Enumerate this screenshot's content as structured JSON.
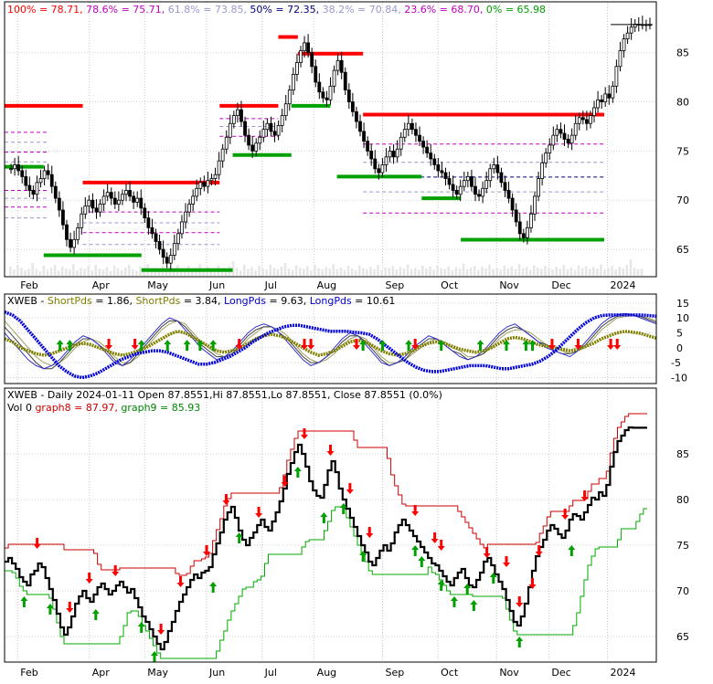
{
  "chart_data": [
    {
      "type": "candlestick",
      "panel": "price",
      "title": "XWEB - Daily 2024-01-11 Open 87.8551, Hi 87.8551, Lo 87.8551, Close 87.8551 (0.0%)",
      "fib_header": [
        {
          "text": "100% = 78.71,",
          "color": "#ff0000"
        },
        {
          "text": "78.6% = 75.71,",
          "color": "#c000c0"
        },
        {
          "text": "61.8% = 73.85,",
          "color": "#9999cc"
        },
        {
          "text": "50% = 72.35,",
          "color": "#000080"
        },
        {
          "text": "38.2% = 70.84,",
          "color": "#9999cc"
        },
        {
          "text": "23.6% = 68.70,",
          "color": "#c000c0"
        },
        {
          "text": "0% = 65.98",
          "color": "#00a000"
        }
      ],
      "ylim": [
        62.5,
        88.5
      ],
      "yticks": [
        65,
        70,
        75,
        80,
        85
      ],
      "months": [
        {
          "label": "Feb",
          "t": 0.02
        },
        {
          "label": "Apr",
          "t": 0.13
        },
        {
          "label": "May",
          "t": 0.215
        },
        {
          "label": "Jun",
          "t": 0.31
        },
        {
          "label": "Jul",
          "t": 0.395
        },
        {
          "label": "Aug",
          "t": 0.475
        },
        {
          "label": "Sep",
          "t": 0.58
        },
        {
          "label": "Oct",
          "t": 0.665
        },
        {
          "label": "Nov",
          "t": 0.755
        },
        {
          "label": "Dec",
          "t": 0.835
        },
        {
          "label": "2024",
          "t": 0.925
        }
      ],
      "close": [
        73.2,
        73.6,
        73.0,
        72.4,
        71.5,
        71.0,
        70.6,
        71.8,
        72.2,
        73.0,
        72.6,
        71.4,
        70.2,
        69.0,
        67.5,
        66.0,
        65.2,
        66.0,
        67.2,
        68.6,
        69.4,
        70.0,
        69.2,
        68.8,
        69.6,
        70.4,
        70.8,
        70.2,
        69.6,
        70.0,
        70.6,
        71.0,
        70.4,
        69.8,
        70.2,
        69.2,
        68.2,
        67.2,
        66.6,
        65.8,
        65.0,
        64.2,
        63.6,
        64.4,
        65.6,
        66.6,
        67.8,
        68.8,
        69.6,
        70.4,
        71.2,
        71.8,
        71.4,
        72.0,
        72.2,
        72.6,
        74.0,
        75.2,
        76.4,
        77.8,
        78.6,
        79.2,
        78.0,
        76.6,
        75.6,
        75.0,
        75.8,
        76.4,
        77.2,
        77.8,
        77.0,
        76.6,
        77.6,
        78.6,
        79.8,
        81.2,
        82.8,
        84.0,
        85.2,
        86.0,
        85.0,
        83.6,
        82.0,
        81.0,
        80.4,
        80.2,
        81.6,
        83.2,
        84.2,
        83.0,
        81.2,
        80.0,
        79.0,
        78.0,
        77.0,
        76.0,
        75.0,
        74.2,
        73.2,
        72.8,
        73.6,
        74.4,
        75.0,
        74.4,
        75.2,
        76.4,
        77.2,
        77.8,
        77.2,
        76.6,
        76.0,
        75.4,
        74.8,
        74.2,
        73.6,
        73.0,
        72.8,
        72.2,
        71.6,
        71.0,
        70.6,
        71.4,
        72.0,
        72.4,
        71.4,
        70.6,
        70.4,
        71.2,
        72.0,
        73.2,
        73.6,
        72.8,
        71.8,
        71.0,
        70.2,
        69.0,
        67.8,
        66.6,
        66.2,
        67.2,
        68.6,
        70.4,
        72.2,
        73.8,
        74.8,
        75.6,
        76.6,
        77.2,
        76.8,
        76.2,
        75.8,
        76.6,
        77.8,
        78.4,
        78.2,
        77.8,
        78.6,
        79.4,
        80.2,
        80.0,
        80.8,
        80.4,
        81.6,
        83.6,
        85.2,
        86.4,
        87.0,
        87.6,
        87.9,
        87.86,
        87.86,
        87.86,
        87.86
      ],
      "volume": [
        0.25,
        0.18,
        0.3,
        0.22,
        0.15,
        0.2,
        0.35,
        0.18,
        0.12,
        0.28,
        0.16,
        0.22,
        0.3,
        0.14,
        0.25,
        0.2,
        0.18,
        0.32,
        0.15,
        0.22,
        0.19,
        0.26,
        0.14,
        0.3,
        0.2,
        0.17,
        0.24,
        0.13,
        0.28,
        0.21,
        0.16,
        0.23,
        0.3,
        0.18,
        0.14,
        0.26,
        0.2,
        0.32,
        0.17,
        0.22,
        0.15,
        0.28,
        0.19,
        0.24,
        0.16,
        0.3,
        0.2,
        0.18,
        0.27,
        0.14,
        0.22,
        0.33,
        0.17,
        0.25,
        0.2,
        0.15,
        0.29,
        0.21,
        0.18,
        0.26,
        0.4,
        0.22,
        0.15,
        0.3,
        0.19,
        0.24,
        0.16,
        0.28,
        0.2,
        0.17,
        0.31,
        0.22,
        0.18,
        0.25,
        0.35,
        0.2,
        0.16,
        0.28,
        0.22,
        0.19,
        0.26,
        0.15,
        0.3,
        0.21,
        0.17,
        0.24,
        0.2,
        0.32,
        0.18,
        0.23,
        0.16,
        0.27,
        0.2,
        0.15,
        0.29,
        0.22,
        0.18,
        0.25,
        0.19,
        0.3,
        0.16,
        0.23,
        0.21,
        0.27,
        0.17,
        0.24,
        0.2,
        0.31,
        0.18,
        0.22,
        0.16,
        0.28,
        0.2,
        0.25,
        0.17,
        0.3,
        0.21,
        0.19,
        0.26,
        0.15,
        0.24,
        0.2,
        0.33,
        0.18,
        0.22,
        0.27,
        0.16,
        0.25,
        0.2,
        0.3,
        0.19,
        0.23,
        0.17,
        0.28,
        0.21,
        0.26,
        0.18,
        0.32,
        0.2,
        0.24,
        0.16,
        0.29,
        0.22,
        0.19,
        0.27,
        0.21,
        0.17,
        0.25,
        0.2,
        0.3,
        0.18,
        0.23,
        0.16,
        0.28,
        0.21,
        0.26,
        0.19,
        0.24,
        0.2,
        0.31,
        0.17,
        0.22,
        0.27,
        0.18,
        0.25,
        0.2,
        0.3,
        0.45,
        0.22,
        0.18,
        0.2
      ],
      "support_resistance": [
        {
          "color": "#ff0000",
          "y": 79.6,
          "t0": 0.0,
          "t1": 0.12
        },
        {
          "color": "#00a000",
          "y": 73.4,
          "t0": 0.0,
          "t1": 0.06
        },
        {
          "color": "#00a000",
          "y": 64.4,
          "t0": 0.06,
          "t1": 0.21
        },
        {
          "color": "#ff0000",
          "y": 71.8,
          "t0": 0.12,
          "t1": 0.33
        },
        {
          "color": "#00a000",
          "y": 62.9,
          "t0": 0.21,
          "t1": 0.35
        },
        {
          "color": "#ff0000",
          "y": 79.6,
          "t0": 0.33,
          "t1": 0.42
        },
        {
          "color": "#00a000",
          "y": 74.6,
          "t0": 0.35,
          "t1": 0.44
        },
        {
          "color": "#ff0000",
          "y": 86.6,
          "t0": 0.42,
          "t1": 0.45
        },
        {
          "color": "#ff0000",
          "y": 84.9,
          "t0": 0.45,
          "t1": 0.55
        },
        {
          "color": "#00a000",
          "y": 79.6,
          "t0": 0.44,
          "t1": 0.5
        },
        {
          "color": "#00a000",
          "y": 72.4,
          "t0": 0.51,
          "t1": 0.64
        },
        {
          "color": "#ff0000",
          "y": 78.7,
          "t0": 0.55,
          "t1": 0.92
        },
        {
          "color": "#00a000",
          "y": 70.2,
          "t0": 0.64,
          "t1": 0.7
        },
        {
          "color": "#00a000",
          "y": 65.98,
          "t0": 0.7,
          "t1": 0.92
        }
      ],
      "fib_lines": [
        {
          "y": 75.71,
          "color": "#c000c0",
          "t0": 0.55,
          "t1": 0.92
        },
        {
          "y": 73.85,
          "color": "#9999cc",
          "t0": 0.55,
          "t1": 0.92
        },
        {
          "y": 72.35,
          "color": "#000080",
          "t0": 0.55,
          "t1": 0.92
        },
        {
          "y": 70.84,
          "color": "#9999cc",
          "t0": 0.55,
          "t1": 0.92
        },
        {
          "y": 68.7,
          "color": "#c000c0",
          "t0": 0.55,
          "t1": 0.92
        }
      ]
    },
    {
      "type": "line",
      "panel": "oscillator",
      "legend": [
        {
          "text": "XWEB - ",
          "color": "#000000"
        },
        {
          "text": "ShortPds",
          "color": "#808000"
        },
        {
          "text": " = 1.86, ",
          "color": "#000000"
        },
        {
          "text": "ShortPds",
          "color": "#808000"
        },
        {
          "text": " = 3.84, ",
          "color": "#000000"
        },
        {
          "text": "LongPds",
          "color": "#0000cc"
        },
        {
          "text": " = 9.63, ",
          "color": "#000000"
        },
        {
          "text": "LongPds",
          "color": "#0000cc"
        },
        {
          "text": " = 10.61",
          "color": "#000000"
        }
      ],
      "ylim": [
        -12,
        18
      ],
      "yticks": [
        15,
        10,
        5,
        0,
        -5,
        -10
      ],
      "long_dotted": [
        12,
        11,
        9,
        6,
        3,
        0,
        -3,
        -6,
        -8,
        -9.5,
        -10,
        -9.5,
        -8.5,
        -7,
        -5.5,
        -4,
        -3,
        -2,
        -1.5,
        -1,
        -1,
        -1.5,
        -2.5,
        -3.5,
        -4.5,
        -5.5,
        -5.5,
        -5,
        -4,
        -3,
        -1.5,
        0,
        2,
        3.5,
        5,
        6,
        7,
        7.5,
        7.5,
        7,
        6.5,
        6,
        5.5,
        5.5,
        5.5,
        5.2,
        5,
        4.5,
        3,
        1,
        -1,
        -3,
        -5,
        -6.5,
        -7.5,
        -8,
        -8,
        -7.5,
        -7,
        -6.5,
        -6,
        -6,
        -6,
        -6.5,
        -7,
        -7,
        -6.5,
        -6,
        -5.5,
        -4.5,
        -3,
        -1,
        1.5,
        4,
        6.5,
        8.5,
        10,
        10.8,
        11,
        11,
        11,
        11,
        11,
        10.8,
        10.6
      ],
      "short_dotted": [
        3,
        2,
        0,
        -1,
        -2,
        -2.5,
        -2,
        -1,
        0,
        1,
        1.5,
        1,
        0,
        -1,
        -2,
        -2.5,
        -2,
        -1,
        0,
        1.5,
        3,
        4.5,
        5.5,
        5,
        3.5,
        2,
        0.5,
        -1,
        -1.5,
        -1,
        0,
        1.5,
        3,
        4,
        4.5,
        4,
        3,
        1.5,
        0,
        -1.5,
        -2.5,
        -2,
        -1,
        0.5,
        2,
        2.5,
        2,
        0.5,
        -1,
        -2,
        -2.5,
        -2,
        -1,
        0.5,
        1.5,
        2,
        1.5,
        0.5,
        -0.5,
        -1,
        -1.5,
        -1,
        0,
        1.5,
        3,
        3.5,
        3,
        2,
        1,
        0.5,
        0,
        -0.5,
        -1,
        -0.5,
        0.5,
        1.5,
        3,
        4,
        5,
        5.5,
        5.2,
        4.8,
        4,
        3.2
      ],
      "raw_a": [
        5,
        2,
        -1,
        -4,
        -6,
        -7,
        -6,
        -4,
        -1,
        2,
        4,
        3,
        1,
        -2,
        -5,
        -6,
        -4,
        -1,
        2,
        5,
        8,
        10,
        9,
        6,
        3,
        0,
        -2,
        -4,
        -3,
        -1,
        2,
        5,
        7,
        8,
        7,
        5,
        2,
        -1,
        -4,
        -6,
        -5,
        -3,
        0,
        3,
        5,
        4,
        1,
        -2,
        -5,
        -6,
        -5,
        -3,
        0,
        2,
        4,
        3,
        1,
        -1,
        -3,
        -4,
        -3,
        -1,
        2,
        5,
        7,
        8,
        6,
        4,
        2,
        0,
        -1,
        -2,
        -3,
        -1,
        2,
        5,
        8,
        10,
        11,
        11.5,
        11,
        10,
        9,
        8
      ],
      "raw_b": [
        7,
        4,
        1,
        -2,
        -5,
        -7,
        -7,
        -5,
        -2,
        1,
        3,
        3,
        1,
        -1,
        -4,
        -6,
        -5,
        -2,
        1,
        4,
        7,
        9,
        9,
        7,
        4,
        1,
        -1,
        -3,
        -3,
        -2,
        1,
        4,
        6,
        7,
        7,
        5,
        3,
        0,
        -3,
        -5,
        -5,
        -3,
        -1,
        2,
        4,
        4,
        2,
        -1,
        -4,
        -6,
        -5,
        -4,
        -1,
        1,
        3,
        3,
        1,
        -1,
        -2,
        -4,
        -3,
        -2,
        1,
        4,
        6,
        7,
        6,
        4,
        2,
        1,
        -1,
        -2,
        -2,
        -1,
        1,
        4,
        7,
        9,
        10.5,
        11,
        11,
        10.5,
        9.5,
        8.5
      ],
      "raw_c": [
        9,
        6,
        3,
        0,
        -3,
        -5,
        -6,
        -5,
        -3,
        0,
        2,
        3,
        2,
        0,
        -3,
        -5,
        -5,
        -3,
        0,
        3,
        6,
        8,
        9,
        8,
        5,
        2,
        0,
        -2,
        -3,
        -2,
        0,
        3,
        5,
        7,
        7,
        6,
        4,
        1,
        -2,
        -4,
        -5,
        -4,
        -2,
        1,
        3,
        4,
        3,
        0,
        -3,
        -5,
        -5,
        -4,
        -2,
        0,
        2,
        3,
        2,
        0,
        -1,
        -3,
        -3,
        -2,
        0,
        3,
        5,
        6,
        6,
        5,
        3,
        1,
        0,
        -1,
        -2,
        -1,
        0,
        3,
        6,
        8,
        10,
        10.5,
        10.8,
        10.5,
        10,
        9
      ],
      "up_arrows_t": [
        0.085,
        0.1,
        0.21,
        0.25,
        0.28,
        0.3,
        0.32,
        0.55,
        0.58,
        0.62,
        0.67,
        0.73,
        0.77,
        0.8,
        0.81
      ],
      "down_arrows_t": [
        0.16,
        0.2,
        0.36,
        0.46,
        0.47,
        0.54,
        0.63,
        0.84,
        0.88,
        0.93,
        0.94
      ]
    },
    {
      "type": "line",
      "panel": "trailing-stop",
      "title": "XWEB - Daily 2024-01-11 Open 87.8551,Hi 87.8551,Lo 87.8551, Close 87.8551 (0.0%)",
      "legend": [
        {
          "text": "Vol 0",
          "color": "#000000"
        },
        {
          "text": "graph8 = 87.97,",
          "color": "#cc0000"
        },
        {
          "text": "graph9 = 85.93",
          "color": "#008800"
        }
      ],
      "ylim": [
        62.5,
        89.5
      ],
      "yticks": [
        65,
        70,
        75,
        80,
        85
      ],
      "months_ref": "price",
      "up_arrows_t": [
        0.03,
        0.07,
        0.14,
        0.21,
        0.23,
        0.32,
        0.36,
        0.45,
        0.49,
        0.52,
        0.55,
        0.63,
        0.64,
        0.67,
        0.69,
        0.71,
        0.72,
        0.75,
        0.79,
        0.87
      ],
      "down_arrows_t": [
        0.05,
        0.1,
        0.13,
        0.17,
        0.24,
        0.27,
        0.31,
        0.34,
        0.39,
        0.43,
        0.46,
        0.5,
        0.53,
        0.56,
        0.63,
        0.66,
        0.67,
        0.74,
        0.77,
        0.79,
        0.81,
        0.82,
        0.86,
        0.89
      ]
    }
  ]
}
